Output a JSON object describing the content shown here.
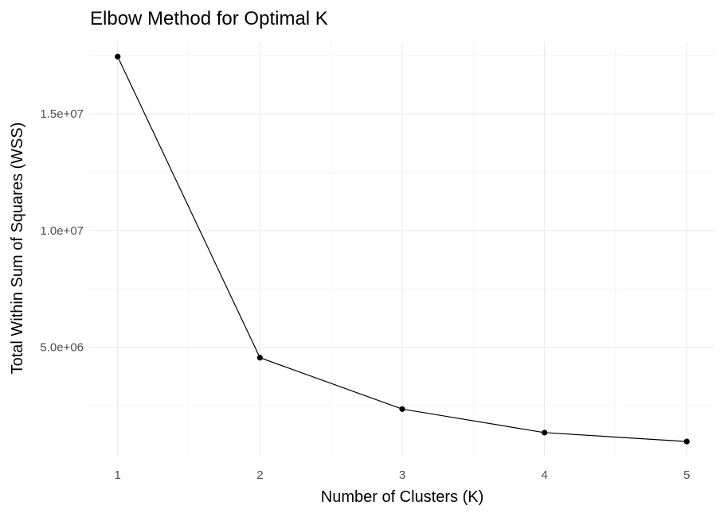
{
  "chart_data": {
    "type": "line",
    "title": "Elbow Method for Optimal K",
    "xlabel": "Number of Clusters (K)",
    "ylabel": "Total Within Sum of Squares (WSS)",
    "x": [
      1,
      2,
      3,
      4,
      5
    ],
    "xticks": [
      "1",
      "2",
      "3",
      "4",
      "5"
    ],
    "yticks": [
      {
        "value": 5000000,
        "label": "5.0e+06"
      },
      {
        "value": 10000000,
        "label": "1.0e+07"
      },
      {
        "value": 15000000,
        "label": "1.5e+07"
      }
    ],
    "series": [
      {
        "values": [
          17450000,
          4550000,
          2350000,
          1340000,
          960000
        ]
      }
    ],
    "xlim": [
      0.8,
      5.2
    ],
    "ylim": [
      350000,
      18070000
    ],
    "grid": true,
    "legend": "none",
    "colors": {
      "line": "#000000",
      "point": "#000000",
      "grid_major": "#ebebeb",
      "grid_minor": "#f2f2f2",
      "tick_text": "#4d4d4d"
    }
  }
}
